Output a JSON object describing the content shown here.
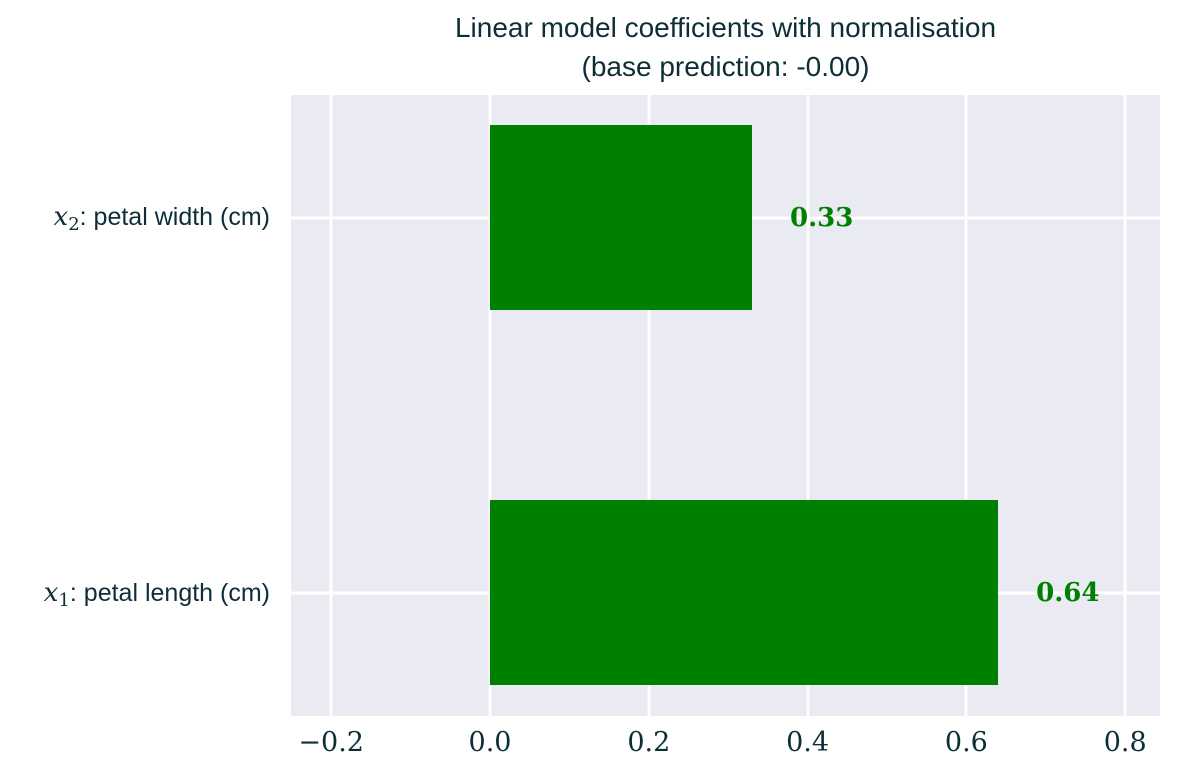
{
  "title": {
    "line1": "Linear model coefficients with normalisation",
    "line2": "(base prediction: -0.00)"
  },
  "colors": {
    "bar": "#008000",
    "value_label": "#008000",
    "text": "#0e2e37",
    "plot_background": "#eaeaf2",
    "gridline": "#ffffff"
  },
  "y_labels": [
    {
      "var": "x",
      "sub": "2",
      "rest": ": petal width (cm)"
    },
    {
      "var": "x",
      "sub": "1",
      "rest": ": petal length (cm)"
    }
  ],
  "chart_data": {
    "type": "bar",
    "orientation": "horizontal",
    "title": "Linear model coefficients with normalisation (base prediction: -0.00)",
    "base_prediction": "-0.00",
    "categories": [
      "x_2: petal width (cm)",
      "x_1: petal length (cm)"
    ],
    "values": [
      0.33,
      0.64
    ],
    "value_labels": [
      "0.33",
      "0.64"
    ],
    "bar_color": "#008000",
    "xticks": [
      "−0.2",
      "0.0",
      "0.2",
      "0.4",
      "0.6",
      "0.8"
    ],
    "xtick_values": [
      -0.2,
      0.0,
      0.2,
      0.4,
      0.6,
      0.8
    ],
    "xlim": [
      -0.25,
      0.845
    ],
    "grid": true,
    "legend": false
  }
}
